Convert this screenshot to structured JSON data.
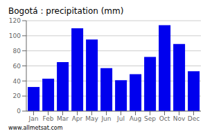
{
  "chart_data": {
    "type": "bar",
    "title": "Bogotá : precipitation (mm)",
    "categories": [
      "Jan",
      "Feb",
      "Mar",
      "Apr",
      "May",
      "Jun",
      "Jul",
      "Aug",
      "Sep",
      "Oct",
      "Nov",
      "Dec"
    ],
    "values": [
      32,
      43,
      65,
      110,
      95,
      57,
      41,
      49,
      72,
      114,
      89,
      53
    ],
    "color": "#0000ee",
    "ylim": [
      0,
      120
    ],
    "yticks": [
      0,
      20,
      40,
      60,
      80,
      100,
      120
    ],
    "grid": true,
    "annotations": [
      "www.allmetsat.com"
    ]
  }
}
